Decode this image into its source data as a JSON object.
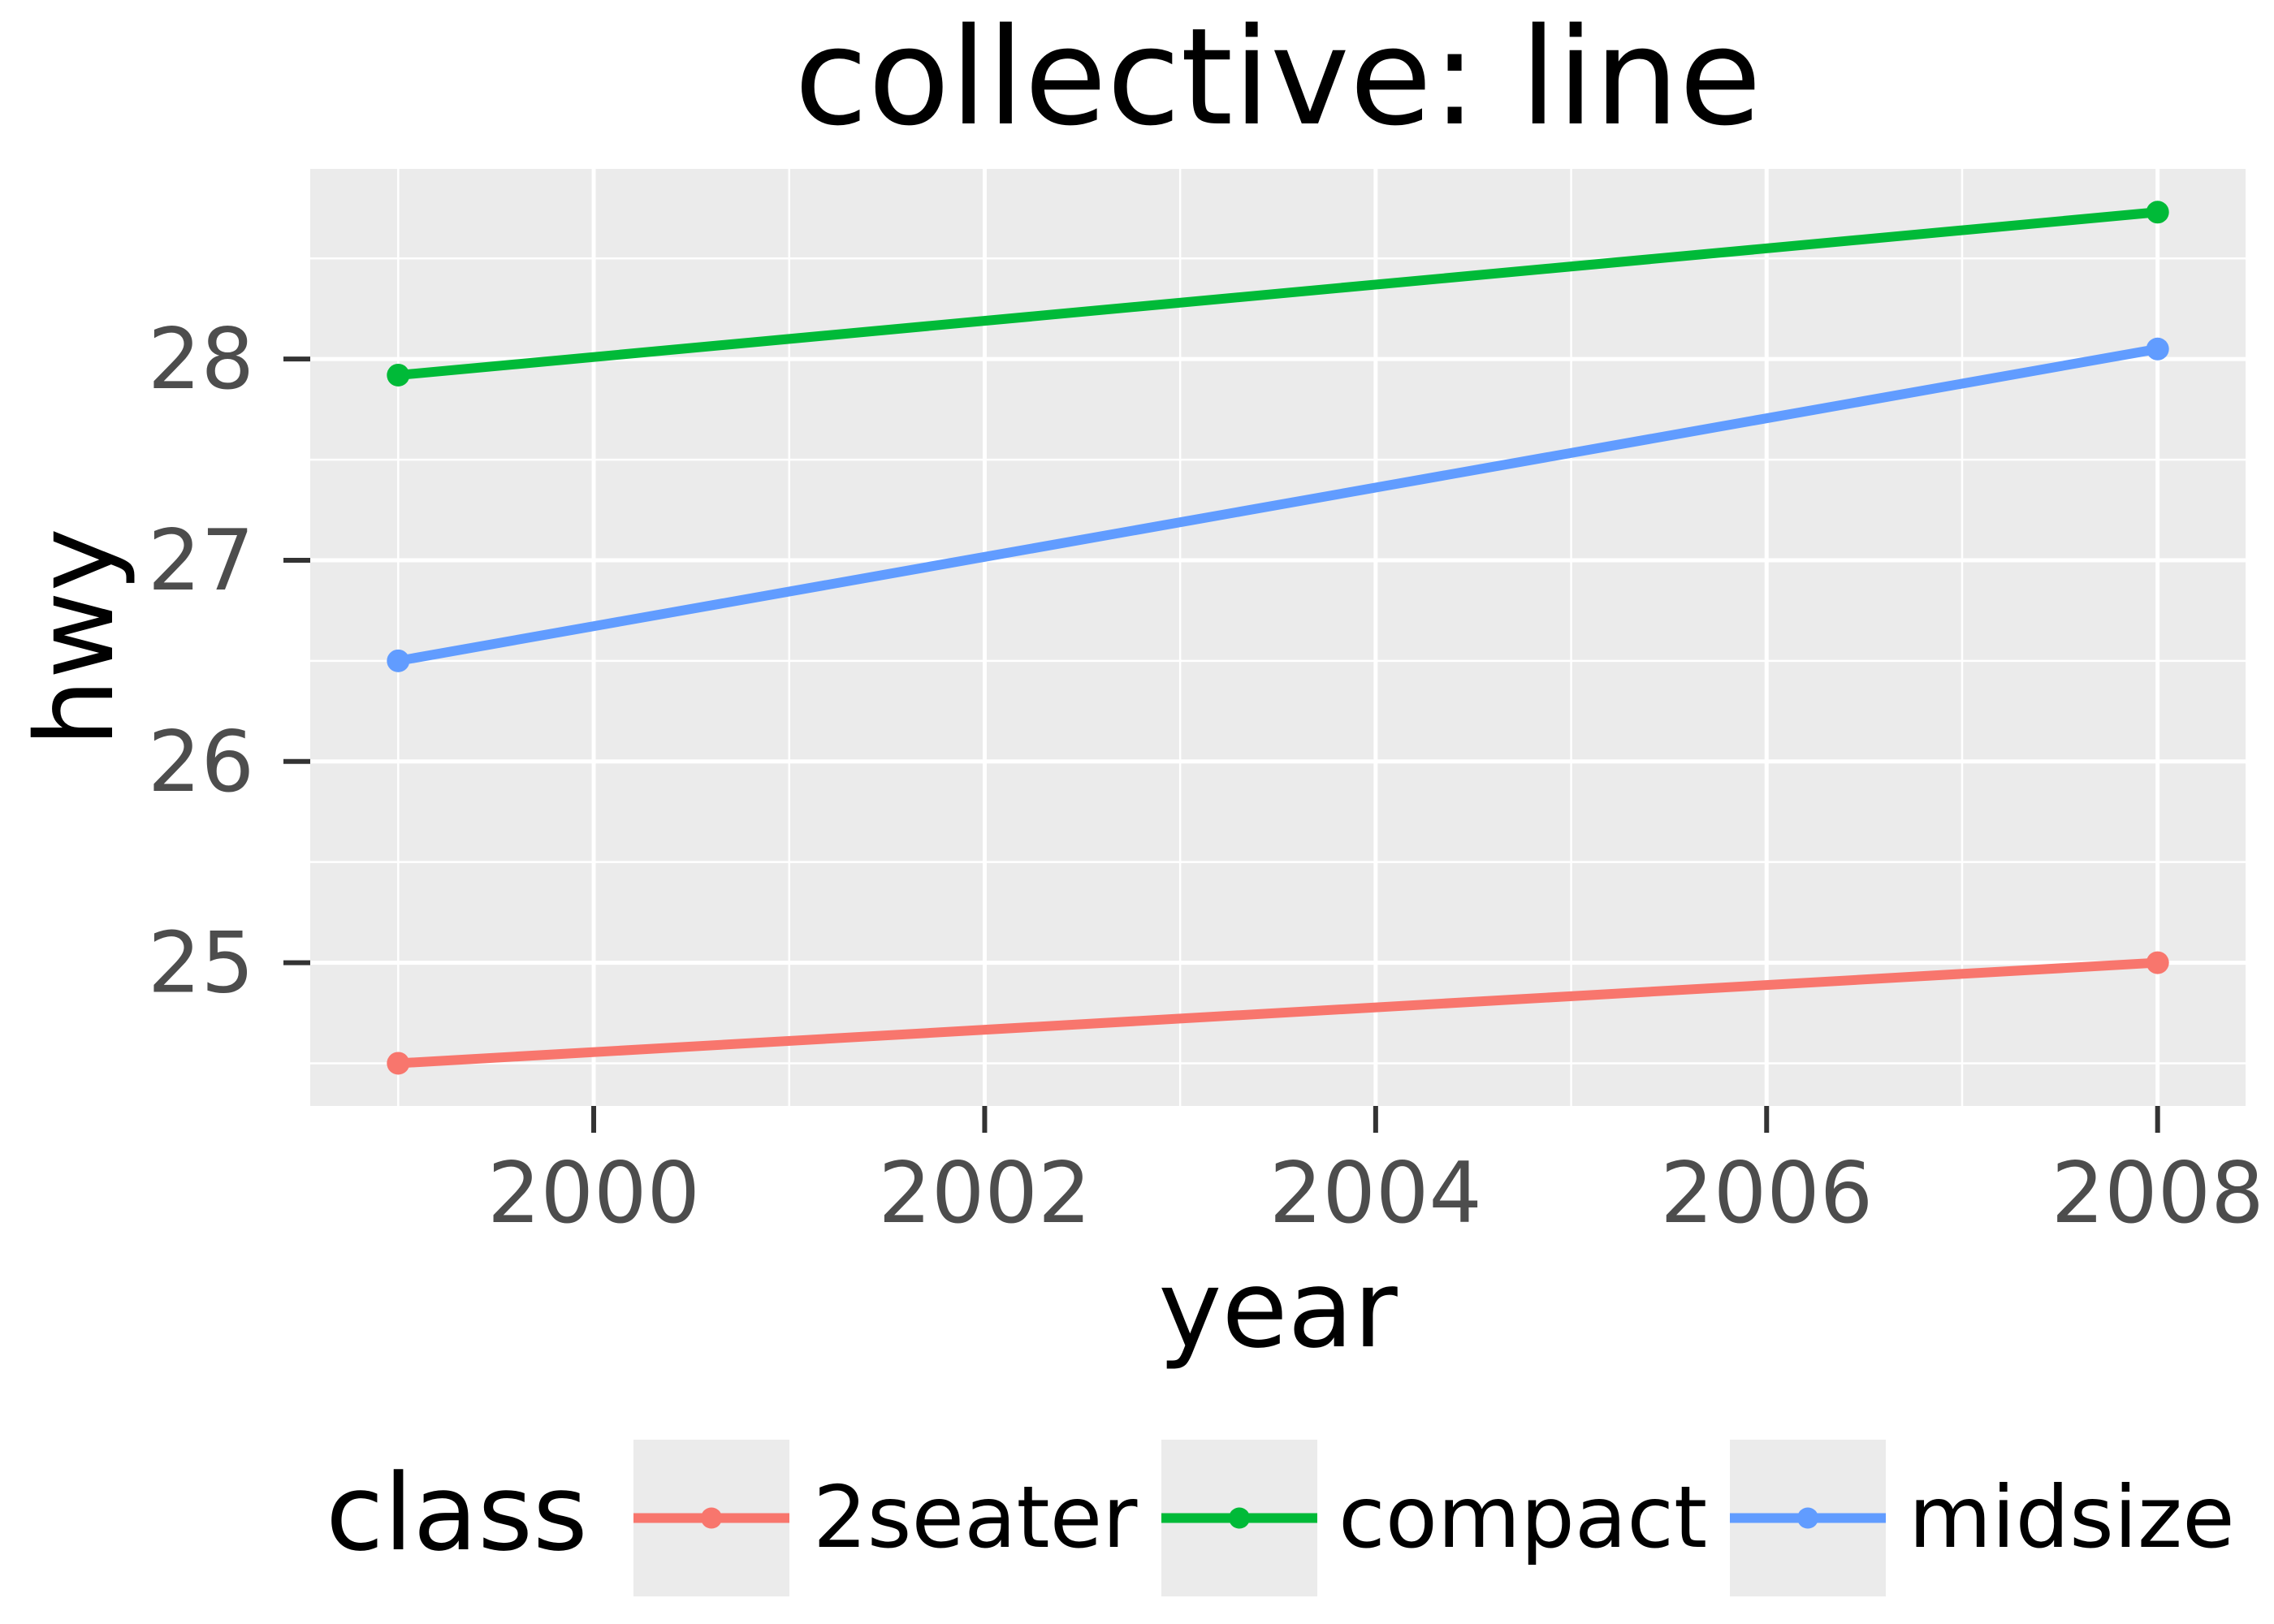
{
  "title": "collective: line",
  "colors": {
    "background": "#ffffff",
    "panel_background": "#EBEBEB",
    "gridline": "#ffffff",
    "tick_mark": "#333333",
    "tick_label": "#4D4D4D",
    "title_text": "#000000",
    "axis_title_text": "#000000",
    "legend_key_background": "#EBEBEB",
    "series": {
      "2seater": "#F8766D",
      "compact": "#00BA38",
      "midsize": "#619CFF"
    }
  },
  "legend": {
    "title": "class",
    "items": [
      {
        "label": "2seater",
        "color": "#F8766D"
      },
      {
        "label": "compact",
        "color": "#00BA38"
      },
      {
        "label": "midsize",
        "color": "#619CFF"
      }
    ]
  },
  "chart_data": {
    "type": "line",
    "title": "collective: line",
    "xlabel": "year",
    "ylabel": "hwy",
    "x": [
      1999,
      2008
    ],
    "series": [
      {
        "name": "2seater",
        "values": [
          24.5,
          25.0
        ],
        "color": "#F8766D"
      },
      {
        "name": "compact",
        "values": [
          27.92,
          28.73
        ],
        "color": "#00BA38"
      },
      {
        "name": "midsize",
        "values": [
          26.5,
          28.05
        ],
        "color": "#619CFF"
      }
    ],
    "x_ticks": [
      2000,
      2002,
      2004,
      2006,
      2008
    ],
    "y_ticks": [
      25,
      26,
      27,
      28
    ],
    "xlim": [
      1998.55,
      2008.45
    ],
    "ylim": [
      24.288,
      28.945
    ],
    "grid": true,
    "marker": "point",
    "legend_title": "class",
    "legend_position": "bottom"
  }
}
